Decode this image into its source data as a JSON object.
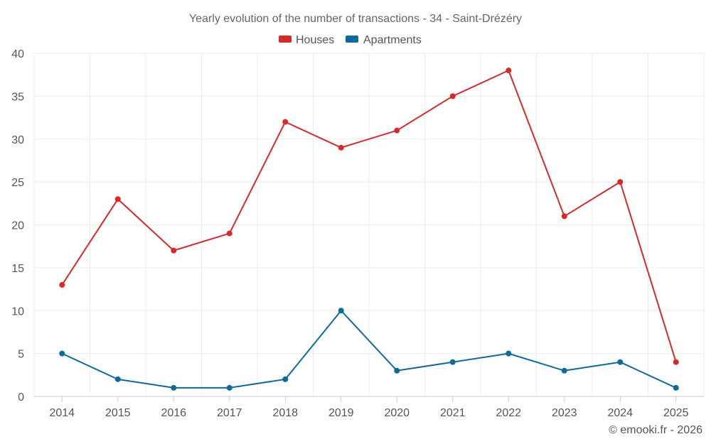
{
  "chart_data": {
    "type": "line",
    "title": "Yearly evolution of the number of transactions - 34 - Saint-Drézéry",
    "categories": [
      "2014",
      "2015",
      "2016",
      "2017",
      "2018",
      "2019",
      "2020",
      "2021",
      "2022",
      "2023",
      "2024",
      "2025"
    ],
    "series": [
      {
        "name": "Houses",
        "color": "#d42a2a",
        "values": [
          13,
          23,
          17,
          19,
          32,
          29,
          31,
          35,
          38,
          21,
          25,
          4
        ]
      },
      {
        "name": "Apartments",
        "color": "#0f6a9a",
        "values": [
          5,
          2,
          1,
          1,
          2,
          10,
          3,
          4,
          5,
          3,
          4,
          1
        ]
      }
    ],
    "xlabel": "",
    "ylabel": "",
    "ylim": [
      0,
      40
    ],
    "yticks": [
      0,
      5,
      10,
      15,
      20,
      25,
      30,
      35,
      40
    ],
    "grid": true,
    "legend": "top-center"
  },
  "credit": "© emooki.fr - 2026"
}
